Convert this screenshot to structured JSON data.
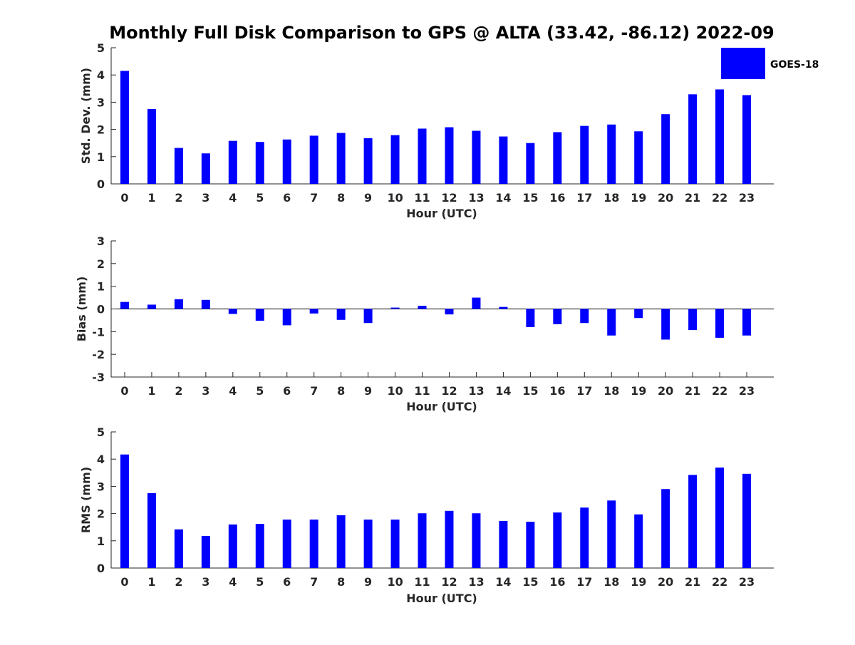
{
  "chart_data": [
    {
      "type": "bar",
      "title": "Monthly Full Disk Comparison to GPS @ ALTA (33.42, -86.12) 2022-09",
      "xlabel": "Hour (UTC)",
      "ylabel": "Std. Dev. (mm)",
      "categories": [
        "0",
        "1",
        "2",
        "3",
        "4",
        "5",
        "6",
        "7",
        "8",
        "9",
        "10",
        "11",
        "12",
        "13",
        "14",
        "15",
        "16",
        "17",
        "18",
        "19",
        "20",
        "21",
        "22",
        "23"
      ],
      "series": [
        {
          "name": "GOES-18",
          "color": "#0000ff",
          "values": [
            4.15,
            2.75,
            1.32,
            1.12,
            1.58,
            1.54,
            1.63,
            1.77,
            1.87,
            1.68,
            1.79,
            2.03,
            2.08,
            1.95,
            1.74,
            1.5,
            1.9,
            2.13,
            2.18,
            1.93,
            2.56,
            3.29,
            3.47,
            3.26
          ]
        }
      ],
      "yticks": [
        "0",
        "1",
        "2",
        "3",
        "4",
        "5"
      ],
      "ylim": [
        0,
        5
      ]
    },
    {
      "type": "bar",
      "xlabel": "Hour (UTC)",
      "ylabel": "Bias (mm)",
      "categories": [
        "0",
        "1",
        "2",
        "3",
        "4",
        "5",
        "6",
        "7",
        "8",
        "9",
        "10",
        "11",
        "12",
        "13",
        "14",
        "15",
        "16",
        "17",
        "18",
        "19",
        "20",
        "21",
        "22",
        "23"
      ],
      "series": [
        {
          "name": "GOES-18",
          "color": "#0000ff",
          "values": [
            0.31,
            0.19,
            0.43,
            0.4,
            -0.22,
            -0.52,
            -0.72,
            -0.2,
            -0.48,
            -0.62,
            0.06,
            0.14,
            -0.24,
            0.5,
            0.09,
            -0.8,
            -0.67,
            -0.62,
            -1.17,
            -0.4,
            -1.35,
            -0.93,
            -1.27,
            -1.17
          ]
        }
      ],
      "yticks": [
        "-3",
        "-2",
        "-1",
        "0",
        "1",
        "2",
        "3"
      ],
      "ylim": [
        -3,
        3
      ]
    },
    {
      "type": "bar",
      "xlabel": "Hour (UTC)",
      "ylabel": "RMS (mm)",
      "categories": [
        "0",
        "1",
        "2",
        "3",
        "4",
        "5",
        "6",
        "7",
        "8",
        "9",
        "10",
        "11",
        "12",
        "13",
        "14",
        "15",
        "16",
        "17",
        "18",
        "19",
        "20",
        "21",
        "22",
        "23"
      ],
      "series": [
        {
          "name": "GOES-18",
          "color": "#0000ff",
          "values": [
            4.17,
            2.75,
            1.42,
            1.18,
            1.6,
            1.62,
            1.78,
            1.78,
            1.94,
            1.78,
            1.78,
            2.01,
            2.1,
            2.01,
            1.73,
            1.7,
            2.04,
            2.22,
            2.48,
            1.97,
            2.9,
            3.42,
            3.69,
            3.46
          ]
        }
      ],
      "yticks": [
        "0",
        "1",
        "2",
        "3",
        "4",
        "5"
      ],
      "ylim": [
        0,
        5
      ]
    }
  ],
  "legend": {
    "label": "GOES-18",
    "color": "#0000ff"
  }
}
